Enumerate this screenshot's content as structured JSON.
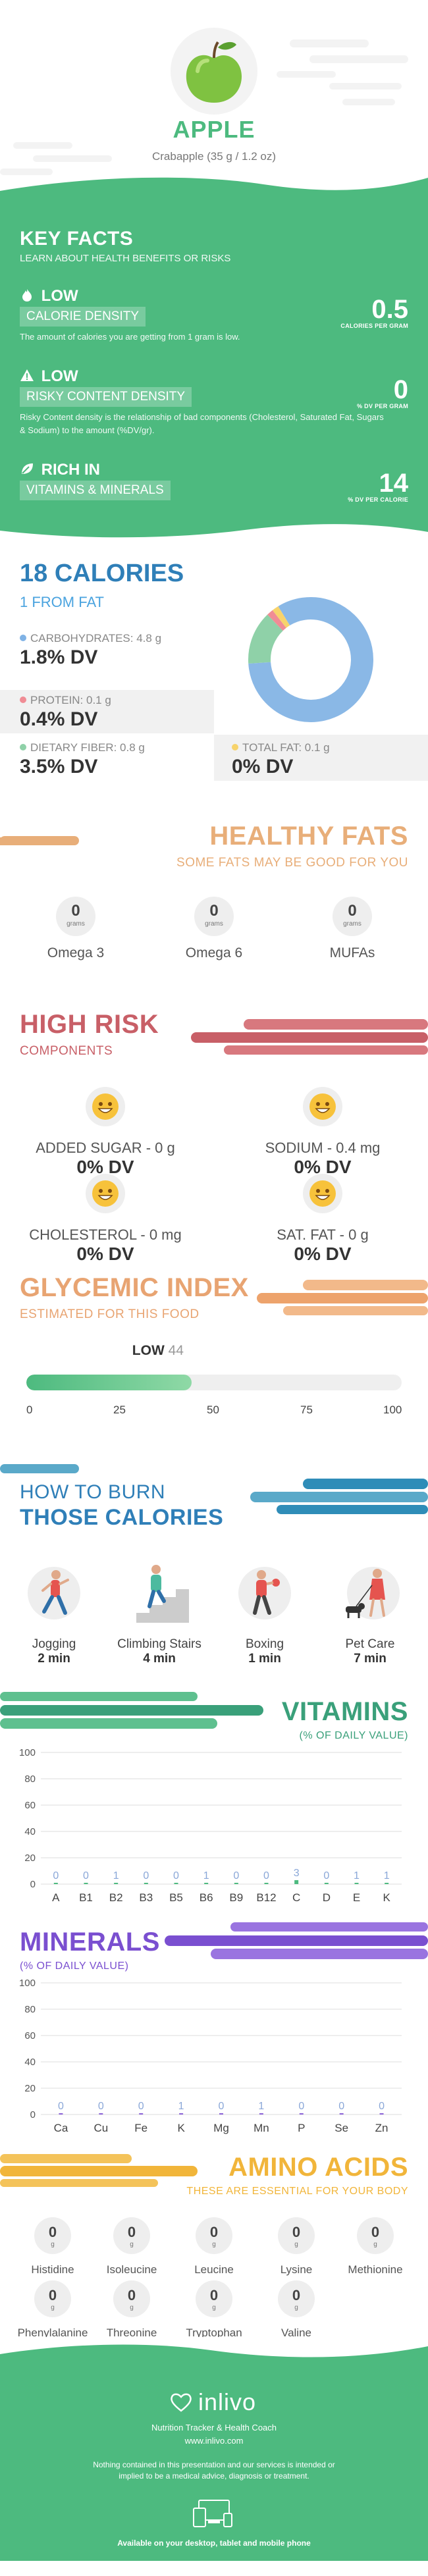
{
  "header": {
    "title": "APPLE",
    "subtitle": "Crabapple (35 g / 1.2 oz)"
  },
  "key_facts": {
    "title": "KEY FACTS",
    "subtitle": "LEARN ABOUT HEALTH BENEFITS OR RISKS",
    "items": [
      {
        "level": "LOW",
        "label": "CALORIE DENSITY",
        "value": "0.5",
        "unit": "CALORIES PER GRAM",
        "desc": "The amount of calories you are getting from 1 gram is low."
      },
      {
        "level": "LOW",
        "label": "RISKY CONTENT DENSITY",
        "value": "0",
        "unit": "% DV PER GRAM",
        "desc": "Risky Content density is the relationship of bad components (Cholesterol, Saturated Fat, Sugars & Sodium) to the amount (%DV/gr)."
      },
      {
        "level": "RICH IN",
        "label": "VITAMINS & MINERALS",
        "value": "14",
        "unit": "% DV PER CALORIE",
        "desc": ""
      }
    ]
  },
  "calories": {
    "title": "18 CALORIES",
    "subtitle": "1 FROM FAT",
    "macros": [
      {
        "label": "CARBOHYDRATES: 4.8 g",
        "dv": "1.8% DV",
        "color": "#7fb2e5"
      },
      {
        "label": "PROTEIN: 0.1 g",
        "dv": "0.4% DV",
        "color": "#f08c95"
      },
      {
        "label": "DIETARY FIBER: 0.8 g",
        "dv": "3.5% DV",
        "color": "#8fd1a8"
      },
      {
        "label": "TOTAL FAT: 0.1 g",
        "dv": "0% DV",
        "color": "#f7d36b"
      }
    ],
    "donut": {
      "slices": [
        {
          "name": "carbs",
          "value": 4.8,
          "color": "#8ab8e6"
        },
        {
          "name": "fiber",
          "value": 0.8,
          "color": "#8fd1a8"
        },
        {
          "name": "protein",
          "value": 0.1,
          "color": "#f08c95"
        },
        {
          "name": "fat",
          "value": 0.1,
          "color": "#f7d36b"
        }
      ]
    }
  },
  "healthy_fats": {
    "title": "HEALTHY FATS",
    "subtitle": "SOME FATS MAY BE GOOD FOR YOU",
    "items": [
      {
        "name": "Omega 3",
        "value": "0",
        "unit": "grams"
      },
      {
        "name": "Omega 6",
        "value": "0",
        "unit": "grams"
      },
      {
        "name": "MUFAs",
        "value": "0",
        "unit": "grams"
      }
    ]
  },
  "high_risk": {
    "title": "HIGH RISK",
    "subtitle": "COMPONENTS",
    "items": [
      {
        "name": "ADDED SUGAR - 0 g",
        "dv": "0% DV"
      },
      {
        "name": "SODIUM - 0.4 mg",
        "dv": "0% DV"
      },
      {
        "name": "CHOLESTEROL - 0 mg",
        "dv": "0% DV"
      },
      {
        "name": "SAT. FAT - 0 g",
        "dv": "0% DV"
      }
    ]
  },
  "glycemic": {
    "title": "GLYCEMIC INDEX",
    "subtitle": "ESTIMATED FOR THIS FOOD",
    "level": "LOW",
    "value": "44",
    "fraction": 0.44,
    "ticks": [
      "0",
      "25",
      "50",
      "75",
      "100"
    ]
  },
  "burn": {
    "title1": "HOW TO BURN",
    "title2": "THOSE CALORIES",
    "activities": [
      {
        "name": "Jogging",
        "time": "2 min"
      },
      {
        "name": "Climbing Stairs",
        "time": "4 min"
      },
      {
        "name": "Boxing",
        "time": "1 min"
      },
      {
        "name": "Pet Care",
        "time": "7 min"
      }
    ]
  },
  "chart_data": [
    {
      "type": "bar",
      "title": "VITAMINS",
      "subtitle": "(% OF DAILY VALUE)",
      "categories": [
        "A",
        "B1",
        "B2",
        "B3",
        "B5",
        "B6",
        "B9",
        "B12",
        "C",
        "D",
        "E",
        "K"
      ],
      "values": [
        0,
        0,
        1,
        0,
        0,
        1,
        0,
        0,
        3,
        0,
        1,
        1
      ],
      "ylim": [
        0,
        100
      ],
      "yticks": [
        "0",
        "20",
        "40",
        "60",
        "80",
        "100"
      ],
      "color": "#4dba7f"
    },
    {
      "type": "bar",
      "title": "MINERALS",
      "subtitle": "(% OF DAILY VALUE)",
      "categories": [
        "Ca",
        "Cu",
        "Fe",
        "K",
        "Mg",
        "Mn",
        "P",
        "Se",
        "Zn"
      ],
      "values": [
        0,
        0,
        0,
        1,
        0,
        1,
        0,
        0,
        0
      ],
      "ylim": [
        0,
        100
      ],
      "yticks": [
        "0",
        "20",
        "40",
        "60",
        "80",
        "100"
      ],
      "color": "#8b63d8"
    }
  ],
  "amino": {
    "title": "AMINO ACIDS",
    "subtitle": "THESE ARE ESSENTIAL FOR YOUR BODY",
    "items": [
      {
        "name": "Histidine",
        "value": "0",
        "unit": "g"
      },
      {
        "name": "Isoleucine",
        "value": "0",
        "unit": "g"
      },
      {
        "name": "Leucine",
        "value": "0",
        "unit": "g"
      },
      {
        "name": "Lysine",
        "value": "0",
        "unit": "g"
      },
      {
        "name": "Methionine",
        "value": "0",
        "unit": "g"
      },
      {
        "name": "Phenylalanine",
        "value": "0",
        "unit": "g"
      },
      {
        "name": "Threonine",
        "value": "0",
        "unit": "g"
      },
      {
        "name": "Tryptophan",
        "value": "0",
        "unit": "g"
      },
      {
        "name": "Valine",
        "value": "0",
        "unit": "g"
      }
    ]
  },
  "footer": {
    "logo": "inlivo",
    "tagline": "Nutrition Tracker & Health Coach",
    "url": "www.inlivo.com",
    "disclaimer": "Nothing contained in this presentation and our services is intended or implied to be a medical advice, diagnosis or treatment.",
    "available": "Available on your desktop, tablet and mobile phone"
  }
}
